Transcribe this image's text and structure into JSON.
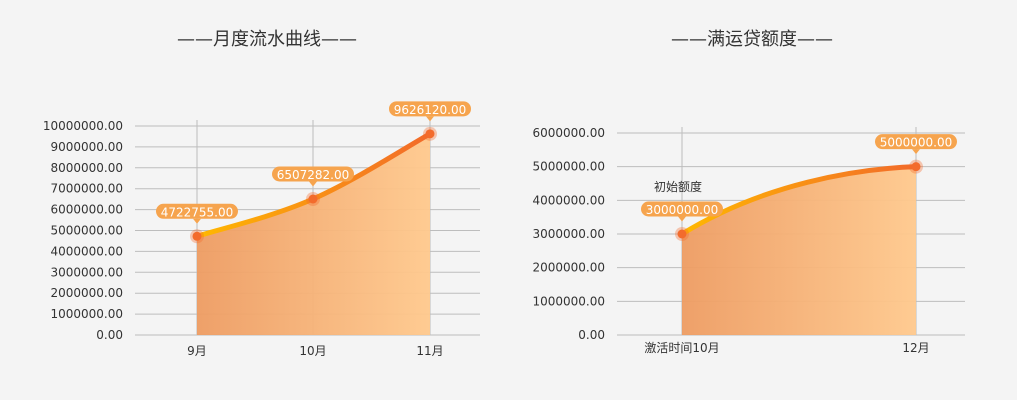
{
  "chart_data": [
    {
      "type": "area",
      "title": "——月度流水曲线——",
      "categories": [
        "9月",
        "10月",
        "11月"
      ],
      "values": [
        4722755.0,
        6507282.0,
        9626120.0
      ],
      "value_labels": [
        "4722755.00",
        "6507282.00",
        "9626120.00"
      ],
      "ylim": [
        0,
        10000000
      ],
      "y_ticks": [
        "0.00",
        "1000000.00",
        "2000000.00",
        "3000000.00",
        "4000000.00",
        "5000000.00",
        "6000000.00",
        "7000000.00",
        "8000000.00",
        "9000000.00",
        "10000000.00"
      ],
      "grid": true,
      "xlabel": "",
      "ylabel": ""
    },
    {
      "type": "area",
      "title": "——满运贷额度——",
      "categories": [
        "激活时间10月",
        "12月"
      ],
      "values": [
        3000000.0,
        5000000.0
      ],
      "value_labels": [
        "3000000.00",
        "5000000.00"
      ],
      "annotation": "初始额度",
      "ylim": [
        0,
        6000000
      ],
      "y_ticks": [
        "0.00",
        "1000000.00",
        "2000000.00",
        "3000000.00",
        "4000000.00",
        "5000000.00",
        "6000000.00"
      ],
      "grid": true,
      "xlabel": "",
      "ylabel": ""
    }
  ],
  "colors": {
    "line_start": "#ffb800",
    "line_end": "#f26a2a",
    "area_start": "#ee9c62",
    "area_end": "#ffc98d",
    "label_bg": "#f6a44e",
    "point": "#f36b2c",
    "grid": "#bdbdbd"
  }
}
